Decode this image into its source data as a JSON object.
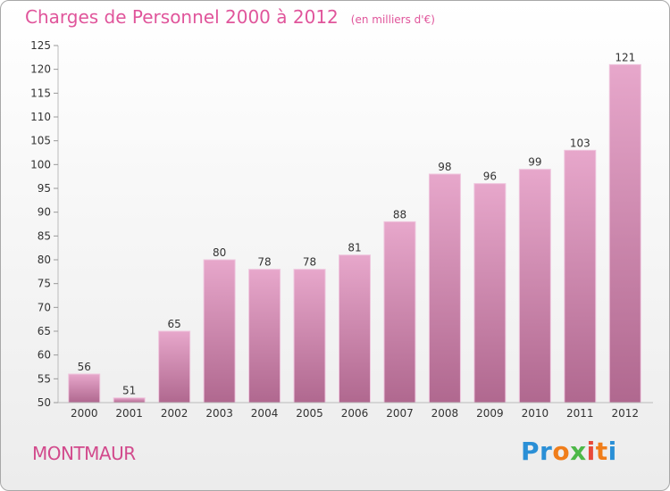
{
  "title": "Charges de Personnel 2000 à 2012",
  "subtitle": "(en milliers d'€)",
  "commune": "MONTMAUR",
  "logo": {
    "letters": [
      "P",
      "r",
      "o",
      "x",
      "i",
      "t",
      "i"
    ],
    "colors": [
      "#2a8fd6",
      "#2a8fd6",
      "#f07d1a",
      "#4db848",
      "#e84a3a",
      "#f07d1a",
      "#2a8fd6"
    ]
  },
  "colors": {
    "bar_top": "#e7a7cb",
    "bar_bottom": "#b0688f",
    "title": "#e0559b"
  },
  "chart_data": {
    "type": "bar",
    "title": "Charges de Personnel 2000 à 2012",
    "subtitle": "(en milliers d'€)",
    "categories": [
      "2000",
      "2001",
      "2002",
      "2003",
      "2004",
      "2005",
      "2006",
      "2007",
      "2008",
      "2009",
      "2010",
      "2011",
      "2012"
    ],
    "values": [
      56,
      51,
      65,
      80,
      78,
      78,
      81,
      88,
      98,
      96,
      99,
      103,
      121
    ],
    "ylim": [
      50,
      125
    ],
    "yticks": [
      50,
      55,
      60,
      65,
      70,
      75,
      80,
      85,
      90,
      95,
      100,
      105,
      110,
      115,
      120,
      125
    ],
    "grid": false,
    "data_labels": true
  }
}
